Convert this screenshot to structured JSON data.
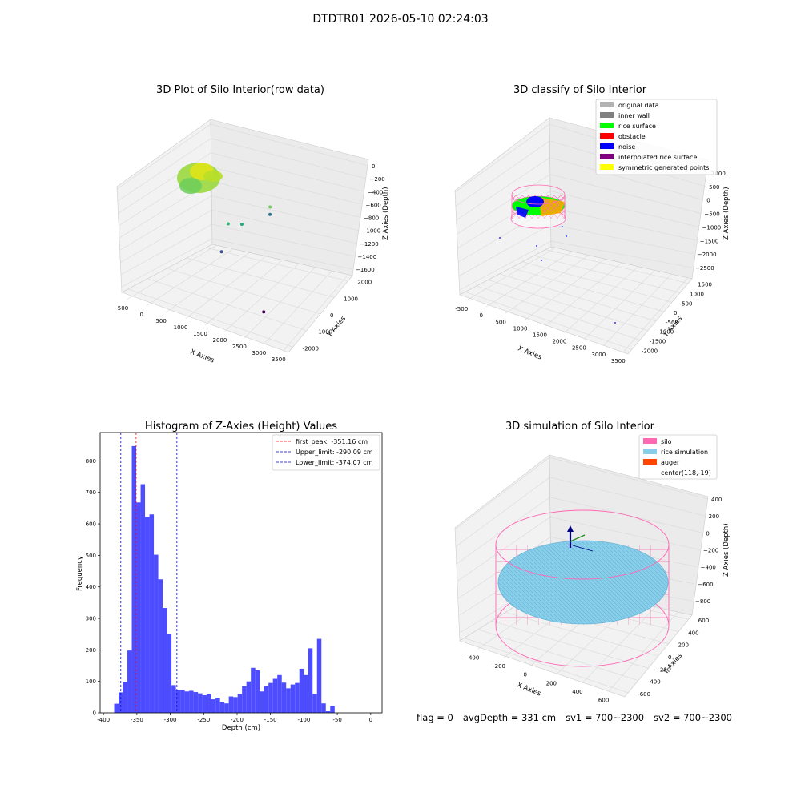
{
  "figure": {
    "suptitle": "DTDTR01 2026-05-10 02:24:03",
    "status": {
      "flag": "flag = 0",
      "avg_depth": "avgDepth = 331 cm",
      "sv1": "sv1 = 700~2300",
      "sv2": "sv2 = 700~2300"
    }
  },
  "colors": {
    "histogram_bar": "#4d4dff",
    "first_peak_line": "#ff0000",
    "limit_lines": "#0000cc",
    "original_data": "#b3b3b3",
    "inner_wall": "#808080",
    "rice_surface": "#00ff00",
    "obstacle": "#ff0000",
    "noise": "#0000ff",
    "interpolated_rice_surface": "#800080",
    "symmetric_generated_points": "#ffff00",
    "silo": "#ff69b4",
    "rice_simulation": "#87ceeb",
    "auger": "#ff4500"
  },
  "chart_data": [
    {
      "type": "scatter3d",
      "title": "3D Plot of Silo Interior(row data)",
      "xlabel": "X Axies",
      "ylabel": "Y Axies",
      "zlabel": "Z Axies (Depth)",
      "x_ticks": [
        "-500",
        "0",
        "500",
        "1000",
        "1500",
        "2000",
        "2500",
        "3000",
        "3500"
      ],
      "y_ticks": [
        "-2000",
        "-1000",
        "0",
        "1000",
        "2000"
      ],
      "z_ticks": [
        "0",
        "−200",
        "−400",
        "−600",
        "−800",
        "−1000",
        "−1200",
        "−1400",
        "−1600"
      ],
      "xlim": [
        -600,
        3700
      ],
      "ylim": [
        -2300,
        2300
      ],
      "zlim": [
        -1700,
        100
      ],
      "colormap": "viridis",
      "points": [
        {
          "x": 200,
          "y": 0,
          "z": -300,
          "color": "#8fd744"
        },
        {
          "x": 300,
          "y": 100,
          "z": -350,
          "color": "#a0da39"
        },
        {
          "x": 500,
          "y": -300,
          "z": -250,
          "color": "#b5de2b"
        },
        {
          "x": 0,
          "y": 200,
          "z": -400,
          "color": "#7ad151"
        },
        {
          "x": 1400,
          "y": 1800,
          "z": -900,
          "color": "#6ece58"
        },
        {
          "x": 600,
          "y": 1000,
          "z": -1100,
          "color": "#35b779"
        },
        {
          "x": 1200,
          "y": 700,
          "z": -1000,
          "color": "#22a884"
        },
        {
          "x": 1700,
          "y": 1300,
          "z": -900,
          "color": "#2a788e"
        },
        {
          "x": 1300,
          "y": -500,
          "z": -1200,
          "color": "#3b528b"
        },
        {
          "x": 3500,
          "y": -2000,
          "z": -1600,
          "color": "#440154"
        }
      ]
    },
    {
      "type": "scatter3d",
      "title": "3D classify of Silo Interior",
      "xlabel": "X Axies",
      "ylabel": "Y Axies",
      "zlabel": "Z Axies (Depth)",
      "x_ticks": [
        "-500",
        "0",
        "500",
        "1000",
        "1500",
        "2000",
        "2500",
        "3000",
        "3500"
      ],
      "y_ticks": [
        "-2000",
        "-1500",
        "-1000",
        "-500",
        "0",
        "500",
        "1000",
        "1500"
      ],
      "z_ticks": [
        "1000",
        "500",
        "0",
        "−500",
        "−1000",
        "−1500",
        "−2000",
        "−2500"
      ],
      "legend": [
        {
          "label": "original data",
          "color_key": "original_data"
        },
        {
          "label": "inner wall",
          "color_key": "inner_wall"
        },
        {
          "label": "rice surface",
          "color_key": "rice_surface"
        },
        {
          "label": "obstacle",
          "color_key": "obstacle"
        },
        {
          "label": "noise",
          "color_key": "noise"
        },
        {
          "label": "interpolated rice surface",
          "color_key": "interpolated_rice_surface"
        },
        {
          "label": "symmetric generated points",
          "color_key": "symmetric_generated_points"
        }
      ],
      "legend_placement": "top-right"
    },
    {
      "type": "bar",
      "title": "Histogram of Z-Axies (Height) Values",
      "xlabel": "Depth (cm)",
      "ylabel": "Frequency",
      "xlim": [
        -405,
        17
      ],
      "ylim": [
        0,
        890
      ],
      "x_ticks": [
        -400,
        -350,
        -300,
        -250,
        -200,
        -150,
        -100,
        -50,
        0
      ],
      "y_ticks": [
        0,
        100,
        200,
        300,
        400,
        500,
        600,
        700,
        800
      ],
      "bin_start": -384,
      "bin_width": 6.6,
      "values": [
        29,
        65,
        98,
        198,
        847,
        668,
        726,
        622,
        630,
        502,
        424,
        333,
        250,
        88,
        73,
        73,
        68,
        70,
        66,
        62,
        56,
        59,
        43,
        48,
        35,
        30,
        52,
        50,
        60,
        85,
        100,
        143,
        135,
        68,
        85,
        95,
        108,
        120,
        96,
        78,
        90,
        95,
        140,
        120,
        205,
        60,
        235,
        30,
        5,
        22
      ],
      "vlines": [
        {
          "label": "first_peak: -351.16 cm",
          "x": -351.16,
          "color_key": "first_peak_line"
        },
        {
          "label": "Upper_limit: -290.09 cm",
          "x": -290.09,
          "color_key": "limit_lines"
        },
        {
          "label": "Lower_limit: -374.07 cm",
          "x": -374.07,
          "color_key": "limit_lines"
        }
      ],
      "legend_placement": "top-right"
    },
    {
      "type": "surface3d",
      "title": "3D simulation of Silo Interior",
      "xlabel": "X Axies",
      "ylabel": "Y Axies",
      "zlabel": "Z Axies (Depth)",
      "x_ticks": [
        "-400",
        "-200",
        "0",
        "200",
        "400",
        "600"
      ],
      "y_ticks": [
        "-600",
        "-400",
        "-200",
        "0",
        "200",
        "400",
        "600"
      ],
      "z_ticks": [
        "400",
        "200",
        "0",
        "−200",
        "−400",
        "−600",
        "−800"
      ],
      "legend": [
        {
          "label": "silo",
          "color_key": "silo"
        },
        {
          "label": "rice simulation",
          "color_key": "rice_simulation"
        },
        {
          "label": "auger",
          "color_key": "auger"
        },
        {
          "label": "center(118,-19)",
          "color_key": ""
        }
      ],
      "legend_placement": "top-right"
    }
  ]
}
